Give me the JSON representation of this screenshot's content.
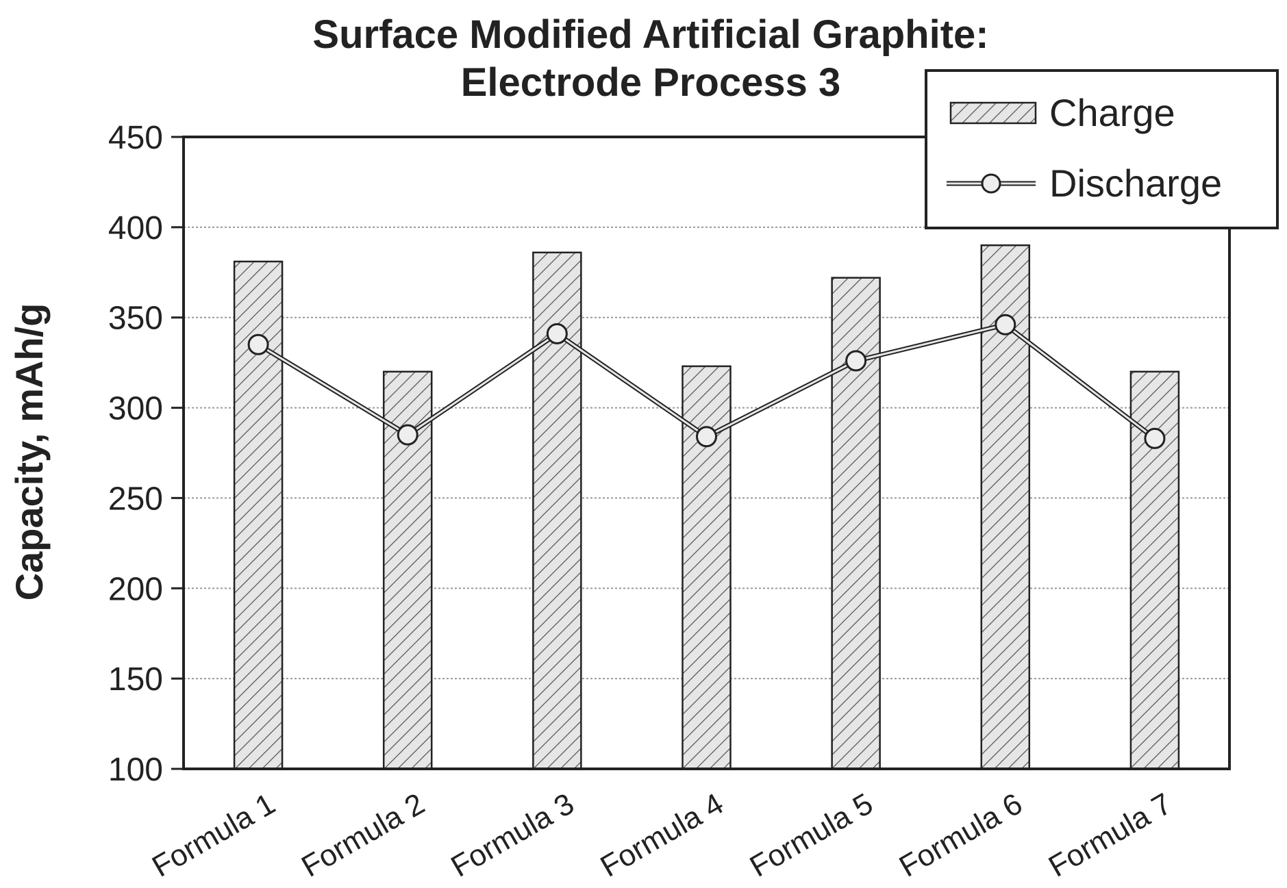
{
  "chart_data": {
    "type": "bar",
    "title": [
      "Surface Modified Artificial Graphite:",
      "Electrode Process 3"
    ],
    "xlabel": "",
    "ylabel": "Capacity, mAh/g",
    "ylim": [
      100,
      450
    ],
    "yticks": [
      100,
      150,
      200,
      250,
      300,
      350,
      400,
      450
    ],
    "grid": true,
    "legend_position": "top-right",
    "categories": [
      "Formula 1",
      "Formula 2",
      "Formula 3",
      "Formula 4",
      "Formula 5",
      "Formula 6",
      "Formula 7"
    ],
    "series": [
      {
        "name": "Charge",
        "type": "bar",
        "values": [
          381,
          320,
          386,
          323,
          372,
          390,
          320
        ]
      },
      {
        "name": "Discharge",
        "type": "line",
        "values": [
          335,
          285,
          341,
          284,
          326,
          346,
          283
        ]
      }
    ]
  },
  "colors": {
    "ink": "#222222",
    "bar_fill": "#e6e6e6",
    "hatch": "#555555",
    "grid": "#999999"
  }
}
